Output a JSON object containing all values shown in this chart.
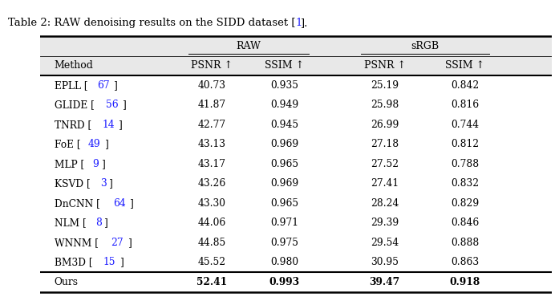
{
  "title": "Table 2: RAW denoising results on the SIDD dataset [",
  "title_ref": "1",
  "title_end": "].",
  "col_headers_top": [
    "RAW",
    "sRGB"
  ],
  "col_headers_sub": [
    "PSNR ↑",
    "SSIM ↑",
    "PSNR ↑",
    "SSIM ↑"
  ],
  "methods_refs": [
    [
      "EPLL",
      "67"
    ],
    [
      "GLIDE",
      "56"
    ],
    [
      "TNRD",
      "14"
    ],
    [
      "FoE",
      "49"
    ],
    [
      "MLP",
      "9"
    ],
    [
      "KSVD",
      "3"
    ],
    [
      "DnCNN",
      "64"
    ],
    [
      "NLM",
      "8"
    ],
    [
      "WNNM",
      "27"
    ],
    [
      "BM3D",
      "15"
    ]
  ],
  "raw_psnr": [
    40.73,
    41.87,
    42.77,
    43.13,
    43.17,
    43.26,
    43.3,
    44.06,
    44.85,
    45.52
  ],
  "raw_ssim": [
    0.935,
    0.949,
    0.945,
    0.969,
    0.965,
    0.969,
    0.965,
    0.971,
    0.975,
    0.98
  ],
  "srgb_psnr": [
    25.19,
    25.98,
    26.99,
    27.18,
    27.52,
    27.41,
    28.24,
    29.39,
    29.54,
    30.95
  ],
  "srgb_ssim": [
    0.842,
    0.816,
    0.744,
    0.812,
    0.788,
    0.832,
    0.829,
    0.846,
    0.888,
    0.863
  ],
  "ours": [
    "Ours",
    52.41,
    0.993,
    39.47,
    0.918
  ],
  "ref_color": "#1a1aff",
  "header_bg": "#e8e8e8",
  "text_color": "#000000",
  "title_fontsize": 9.5,
  "header_fontsize": 9.0,
  "body_fontsize": 8.8
}
